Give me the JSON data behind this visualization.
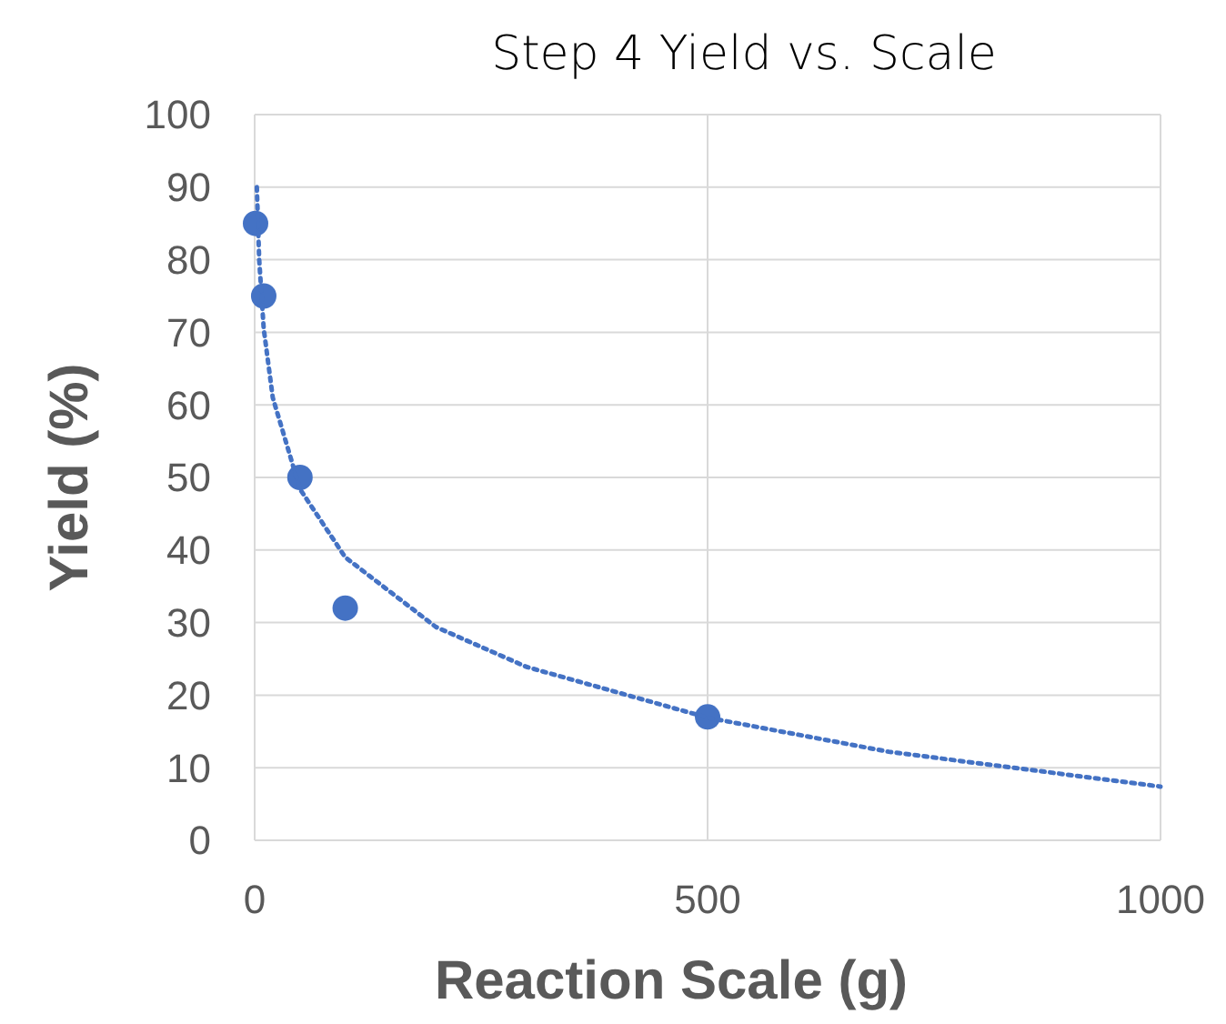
{
  "chart_data": {
    "type": "scatter",
    "title": "Step 4 Yield vs. Scale",
    "xlabel": "Reaction Scale (g)",
    "ylabel": "Yield (%)",
    "xlim": [
      0,
      1000
    ],
    "xticks": [
      0,
      500,
      1000
    ],
    "ylim": [
      0,
      100
    ],
    "yticks": [
      0,
      10,
      20,
      30,
      40,
      50,
      60,
      70,
      80,
      90,
      100
    ],
    "grid": true,
    "series": [
      {
        "color": "#4472c4",
        "marker": "circle",
        "x": [
          1,
          10,
          50,
          100,
          500
        ],
        "values": [
          85,
          75,
          50,
          32,
          17
        ]
      },
      {
        "type": "line",
        "color": "#4472c4",
        "marker": "none",
        "line_style": "dotted",
        "x": [
          2.4,
          5,
          10,
          20,
          50,
          100,
          200,
          300,
          500,
          700,
          1000
        ],
        "values": [
          90,
          80,
          70.5,
          61,
          48.4,
          39,
          29.4,
          23.9,
          16.9,
          12.2,
          7.4
        ]
      }
    ]
  }
}
